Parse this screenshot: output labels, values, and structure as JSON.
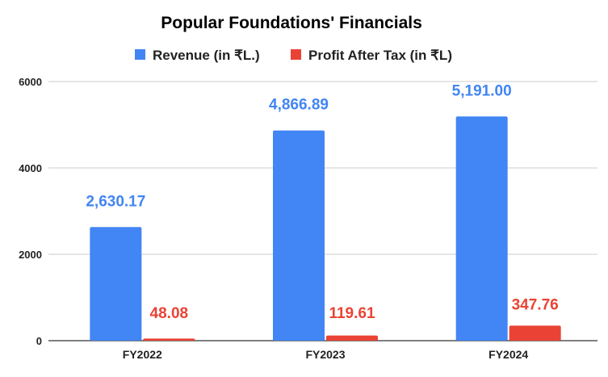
{
  "chart_data": {
    "type": "bar",
    "title": "Popular Foundations' Financials",
    "categories": [
      "FY2022",
      "FY2023",
      "FY2024"
    ],
    "series": [
      {
        "name": "Revenue (in ₹L.)",
        "values": [
          2630.17,
          4866.89,
          5191.0
        ],
        "labels": [
          "2,630.17",
          "4,866.89",
          "5,191.00"
        ],
        "color": "#4285f4"
      },
      {
        "name": "Profit After Tax (in ₹L)",
        "values": [
          48.08,
          119.61,
          347.76
        ],
        "labels": [
          "48.08",
          "119.61",
          "347.76"
        ],
        "color": "#ea4335"
      }
    ],
    "ylim": [
      0,
      6000
    ],
    "yticks": [
      "0",
      "2000",
      "4000",
      "6000"
    ],
    "xlabel": "",
    "ylabel": "",
    "grid": true,
    "legend": "top"
  }
}
